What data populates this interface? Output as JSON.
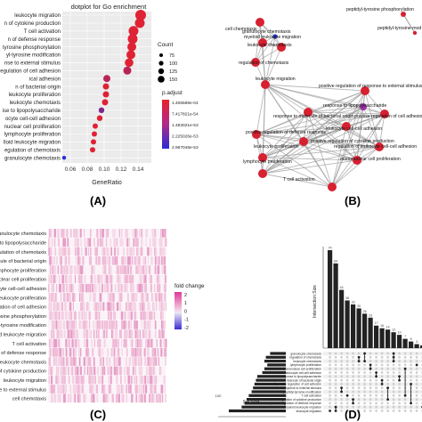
{
  "panel_labels": [
    "(A)",
    "(B)",
    "(C)",
    "(D)"
  ],
  "panelA": {
    "title": "dotplot for Go enrichment",
    "terms": [
      "leukocyte migration",
      "n of cytokine production",
      "T cell activation",
      "n of defense response",
      "tyrosine phosphorylation",
      "yl-tyrosine modification",
      "nse to external stimulus",
      "egulation of cell adhesion",
      "ical adhesion",
      "n of bacterial origin",
      "leukocyte proliferation",
      "leukocyte chemotaxis",
      "ise to lipopolysaccharide",
      "ocyte cell-cell adhesion",
      "nuclear cell proliferation",
      "lymphocyte proliferation",
      "lloid leukocyte migration",
      "egulation of chemotaxis",
      "granulocyte chemotaxis"
    ],
    "xlabel": "GeneRatio",
    "xticks": [
      "0.06",
      "0.08",
      "0.10",
      "0.12",
      "0.14"
    ],
    "count_legend_title": "Count",
    "count_legend_values": [
      "75",
      "100",
      "125",
      "150"
    ],
    "padj_legend_title": "p.adjust",
    "padj_legend_values": [
      "1.406588e-04",
      "7.417821e-54",
      "1.483021e-53",
      "2.225026e-53",
      "2.967048e-53"
    ],
    "colors": {
      "high": "#e8222b",
      "low": "#2a2bd8"
    }
  },
  "panelB": {
    "nodes": [
      "peptidyl-tyrosine phosphorylation",
      "peptidyl-tyrosine mod",
      "cell chemotaxis",
      "granulocyte chemotaxis",
      "myeloid leukocyte migration",
      "leukocyte chemotaxis",
      "regulation of chemotaxis",
      "leukocyte migration",
      "positive regulation of response to external stimulus",
      "response to lipopolysaccharide",
      "response to molecule of bacterial origin",
      "positive regulation of cell adhesion",
      "leukocyte cell-cell adhesion",
      "positive regulation of defense response",
      "positive regulation of cytokine production",
      "regulation of leukocyte cell-cell adhesion",
      "leukocyte proliferation",
      "mononuclear cell proliferation",
      "lymphocyte proliferation",
      "T cell activation"
    ]
  },
  "panelC": {
    "terms": [
      "granulocyte chemotaxis",
      "se to lipopolysaccharide",
      "regulation of chemotaxis",
      "olecule of bacterial origin",
      "lymphocyte proliferation",
      "onuclear cell proliferation",
      "eukocyte cell-cell adhesion",
      "leukocyte proliferation",
      "regulation of cell adhesion",
      "yl-tyrosine phosphorylation",
      "dyl-tyrosine modification",
      "eloid leukocyte migration",
      "T cell activation",
      "n of defense response",
      "leukocyte chemotaxis",
      "n of cytokine production",
      "leukocyte migration",
      "nse to external stimulus",
      "cell chemotaxis"
    ],
    "legend_title": "fold change",
    "legend_ticks": [
      "2",
      "1",
      "0",
      "-1",
      "-2"
    ],
    "colors": {
      "high": "#e0359a",
      "mid": "#f2c8df",
      "low": "#3a2bd0"
    }
  },
  "panelD": {
    "ylabel": "Intersection Size",
    "bar_labels": [
      "74",
      "64",
      "44",
      "36",
      "33",
      "30",
      "26",
      "23",
      "17",
      "15",
      "14",
      "12",
      "10",
      "7",
      "5",
      "3",
      "2"
    ],
    "set_terms": [
      "granulocyte chemotaxis",
      "regulation of chemotaxis",
      "leukocyte chemotaxis",
      "lymphocyte proliferation",
      "mononuclear cell proliferation",
      "leukocyte cell-cell adhesion",
      "response to lipopolysaccharide",
      "response to molecule of bacterial origin",
      "positive regulation of cell adhesion",
      "response to external stimulus",
      "peptidyl-tyrosine modification",
      "T cell activation",
      "regulation of cytokine production",
      "positive regulation of defense response",
      "myeloid leukocyte migration",
      "leukocyte migration"
    ],
    "set_size_label": "Set Size",
    "set_size_ticks": [
      "100",
      "50",
      "0"
    ]
  }
}
